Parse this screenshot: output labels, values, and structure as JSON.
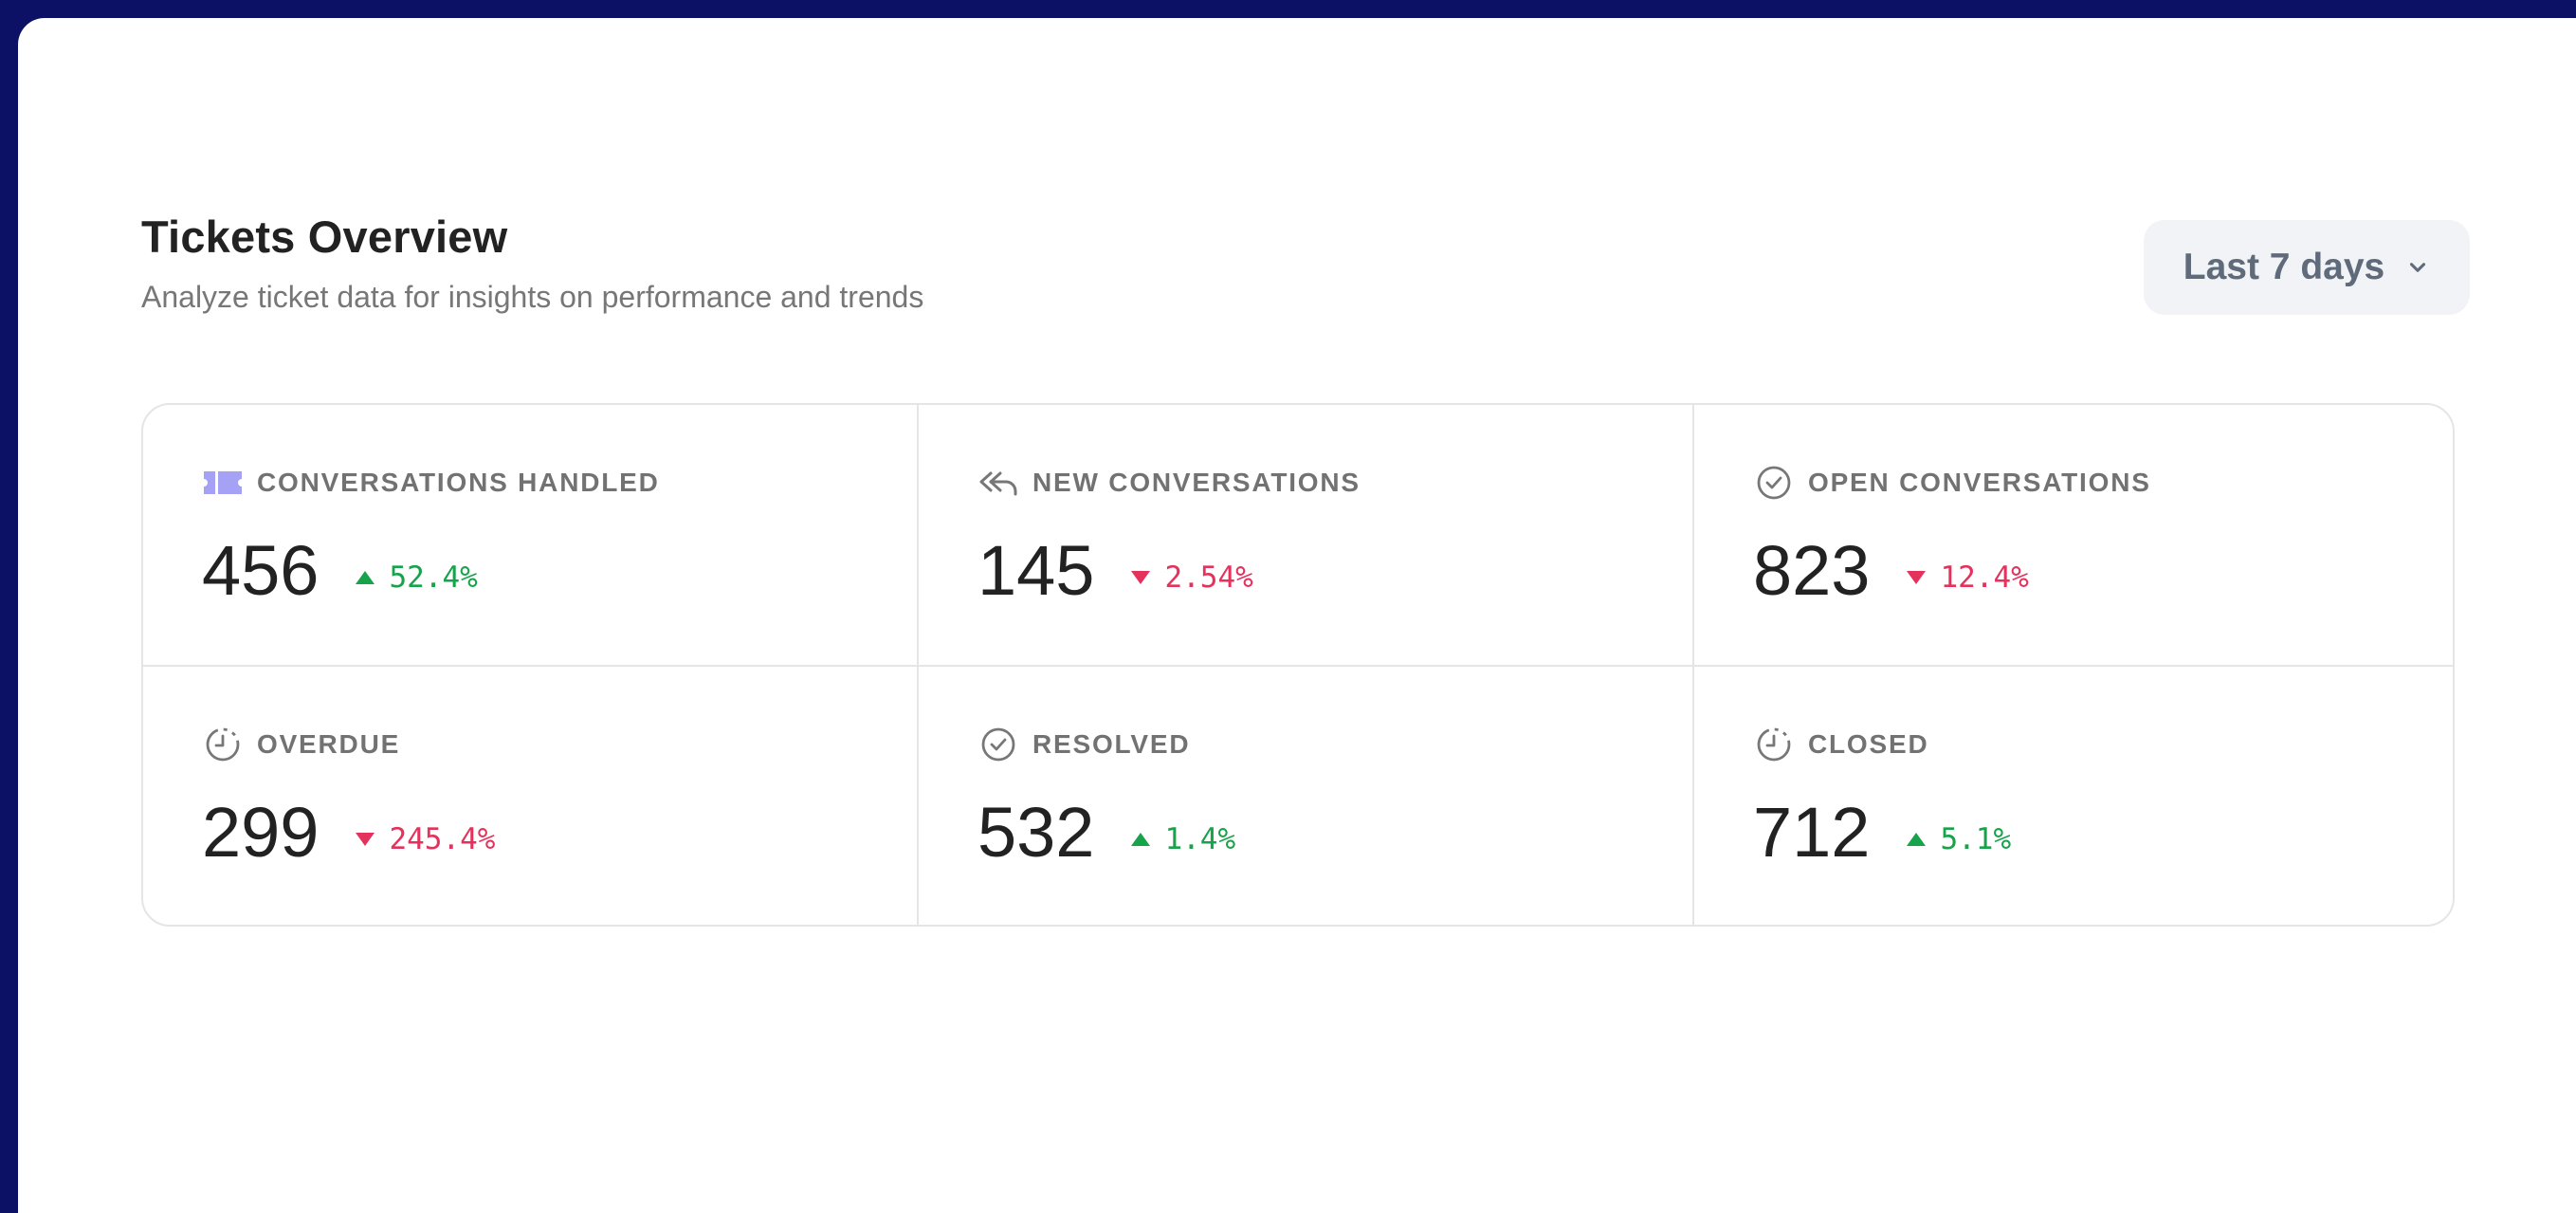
{
  "header": {
    "title": "Tickets Overview",
    "subtitle": "Analyze ticket data for insights on performance and trends"
  },
  "range_selector": {
    "label": "Last 7 days",
    "icon": "chevron-down-icon"
  },
  "colors": {
    "frame": "#0c1166",
    "up": "#16a34a",
    "down": "#e4325c",
    "ticket_icon": "#a5a1f5"
  },
  "stats": [
    {
      "label": "CONVERSATIONS HANDLED",
      "value": "456",
      "change": "52.4%",
      "direction": "up",
      "icon": "ticket-icon"
    },
    {
      "label": "NEW CONVERSATIONS",
      "value": "145",
      "change": "2.54%",
      "direction": "down",
      "icon": "reply-all-icon"
    },
    {
      "label": "OPEN CONVERSATIONS",
      "value": "823",
      "change": "12.4%",
      "direction": "down",
      "icon": "check-circle-icon"
    },
    {
      "label": "OVERDUE",
      "value": "299",
      "change": "245.4%",
      "direction": "down",
      "icon": "clock-icon"
    },
    {
      "label": "RESOLVED",
      "value": "532",
      "change": "1.4%",
      "direction": "up",
      "icon": "check-circle-icon"
    },
    {
      "label": "CLOSED",
      "value": "712",
      "change": "5.1%",
      "direction": "up",
      "icon": "clock-icon"
    }
  ]
}
